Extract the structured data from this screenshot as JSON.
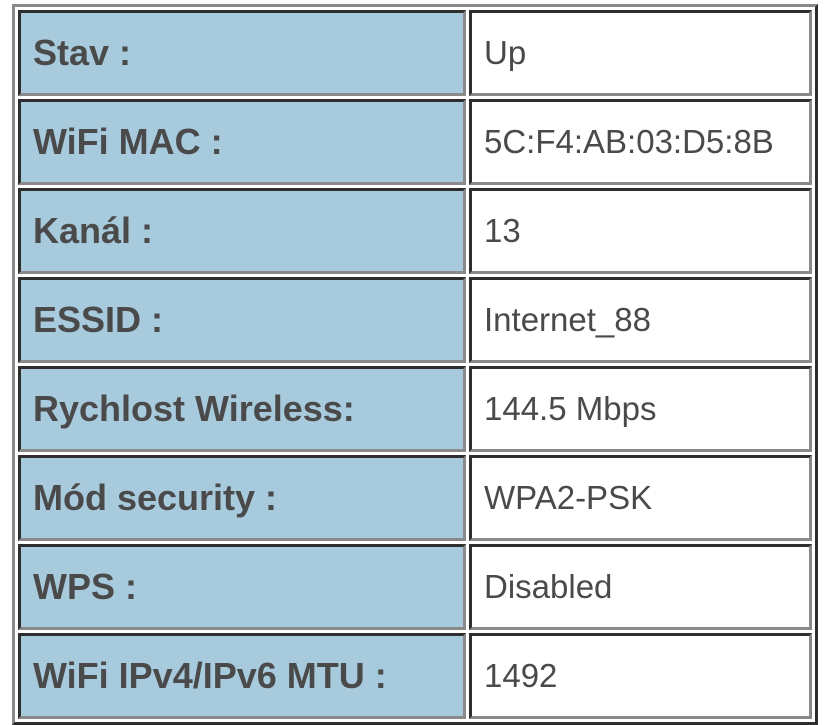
{
  "rows": [
    {
      "label": "Stav :",
      "value": "Up"
    },
    {
      "label": "WiFi MAC :",
      "value": "5C:F4:AB:03:D5:8B"
    },
    {
      "label": "Kanál :",
      "value": "13"
    },
    {
      "label": "ESSID :",
      "value": "Internet_88"
    },
    {
      "label": "Rychlost Wireless:",
      "value": "144.5 Mbps"
    },
    {
      "label": "Mód security :",
      "value": "WPA2-PSK"
    },
    {
      "label": "WPS :",
      "value": "Disabled"
    },
    {
      "label": "WiFi IPv4/IPv6 MTU :",
      "value": "1492"
    }
  ],
  "colors": {
    "label_bg": "#a7cadd",
    "text": "#4a4a4a"
  }
}
